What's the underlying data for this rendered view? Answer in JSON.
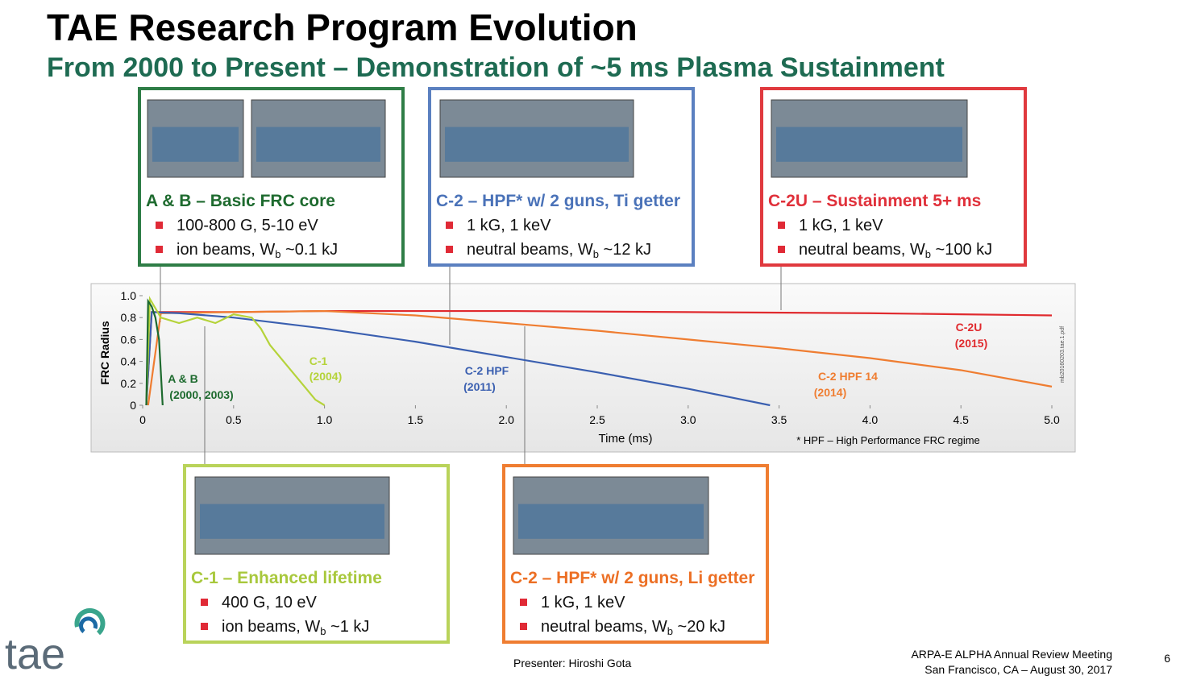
{
  "header": {
    "title": "TAE Research Program Evolution",
    "subtitle": "From 2000 to Present – Demonstration of ~5 ms Plasma Sustainment"
  },
  "boxes": [
    {
      "title": "A & B – Basic FRC core",
      "color": "#2e7d46",
      "title_color": "#1d6a2e",
      "bullets": [
        {
          "text": "100-800 G, 5-10 eV"
        },
        {
          "text": "ion beams, W",
          "sub": "b",
          "rest": " ~0.1 kJ"
        }
      ]
    },
    {
      "title": "C-2 – HPF* w/ 2 guns, Ti getter",
      "color": "#5b80c0",
      "title_color": "#4a72b8",
      "bullets": [
        {
          "text": "1 kG, 1 keV"
        },
        {
          "text": "neutral beams, W",
          "sub": "b",
          "rest": " ~12 kJ"
        }
      ]
    },
    {
      "title": "C-2U – Sustainment 5+ ms",
      "color": "#e0393e",
      "title_color": "#e0303a",
      "bullets": [
        {
          "text": "1 kG, 1 keV"
        },
        {
          "text": "neutral beams, W",
          "sub": "b",
          "rest": " ~100 kJ"
        }
      ]
    },
    {
      "title": "C-1 – Enhanced lifetime",
      "color": "#b9d35a",
      "title_color": "#a8c83c",
      "bullets": [
        {
          "text": "400 G, 10 eV"
        },
        {
          "text": "ion beams, W",
          "sub": "b",
          "rest": " ~1 kJ"
        }
      ]
    },
    {
      "title": "C-2 – HPF* w/ 2 guns, Li getter",
      "color": "#ef7d31",
      "title_color": "#ec6f24",
      "bullets": [
        {
          "text": "1 kG, 1 keV"
        },
        {
          "text": "neutral beams, W",
          "sub": "b",
          "rest": " ~20 kJ"
        }
      ]
    }
  ],
  "chart_data": {
    "type": "line",
    "ylabel": "FRC Radius",
    "xlabel": "Time (ms)",
    "note": "* HPF – High Performance FRC regime",
    "side_note": "mb20160203.tae.1.pdf",
    "xlim": [
      0,
      5
    ],
    "ylim": [
      0,
      1
    ],
    "xticks": [
      0,
      0.5,
      {
        "value": 1,
        "label": "1.0"
      },
      1.5,
      {
        "value": 2,
        "label": "2.0"
      },
      2.5,
      {
        "value": 3,
        "label": "3.0"
      },
      3.5,
      {
        "value": 4,
        "label": "4.0"
      },
      4.5,
      {
        "value": 5,
        "label": "5.0"
      }
    ],
    "yticks": [
      0,
      0.2,
      0.4,
      0.6,
      0.8,
      {
        "value": 1,
        "label": "1.0"
      }
    ],
    "grid": false,
    "series": [
      {
        "name": "C-2U",
        "period": "(2015)",
        "color": "#e02a2e",
        "x": [
          0.02,
          0.05,
          0.5,
          1,
          2,
          3,
          4,
          4.5,
          5
        ],
        "values": [
          0,
          0.85,
          0.85,
          0.86,
          0.86,
          0.85,
          0.84,
          0.83,
          0.82
        ]
      },
      {
        "name": "C-2 HPF 14",
        "period": "(2014)",
        "color": "#ef7d31",
        "x": [
          0.03,
          0.1,
          0.5,
          1,
          1.5,
          2,
          2.5,
          3,
          3.5,
          4,
          4.5,
          5
        ],
        "values": [
          0,
          0.84,
          0.85,
          0.86,
          0.82,
          0.75,
          0.68,
          0.6,
          0.52,
          0.43,
          0.32,
          0.17
        ]
      },
      {
        "name": "C-2 HPF",
        "period": "(2011)",
        "color": "#3a5fb0",
        "x": [
          0.02,
          0.05,
          0.2,
          0.5,
          1,
          1.5,
          2,
          2.5,
          3,
          3.3,
          3.45
        ],
        "values": [
          0,
          0.85,
          0.84,
          0.8,
          0.7,
          0.58,
          0.44,
          0.3,
          0.15,
          0.05,
          0
        ]
      },
      {
        "name": "C-1",
        "period": "(2004)",
        "color": "#b5d33a",
        "x": [
          0.02,
          0.04,
          0.1,
          0.2,
          0.3,
          0.4,
          0.5,
          0.6,
          0.65,
          0.7,
          0.8,
          0.9,
          0.95,
          1
        ],
        "values": [
          0,
          0.97,
          0.8,
          0.75,
          0.8,
          0.75,
          0.83,
          0.8,
          0.7,
          0.55,
          0.35,
          0.15,
          0.05,
          0
        ]
      },
      {
        "name": "A & B",
        "period": "(2000, 2003)",
        "color": "#1d6a2e",
        "x": [
          0.02,
          0.03,
          0.05,
          0.07,
          0.09,
          0.1,
          0.11
        ],
        "values": [
          0,
          0.95,
          0.9,
          0.8,
          0.6,
          0.3,
          0
        ]
      }
    ]
  },
  "footer": {
    "presenter": "Presenter: Hiroshi Gota",
    "meeting": "ARPA-E ALPHA Annual Review Meeting",
    "location": "San Francisco, CA – August 30, 2017",
    "page": 6,
    "logo": "tae"
  }
}
